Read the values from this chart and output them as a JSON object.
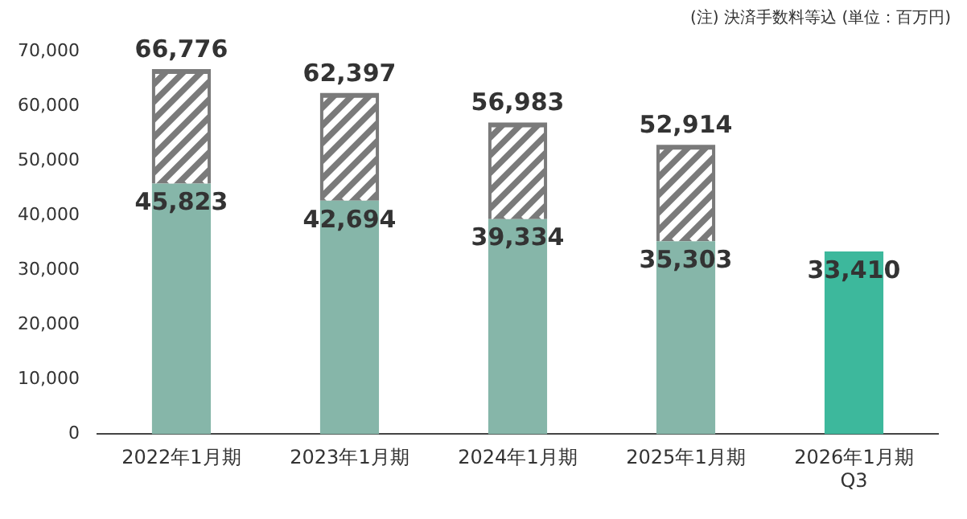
{
  "chart_data": {
    "type": "bar",
    "stacked": true,
    "categories": [
      "2022年1月期",
      "2023年1月期",
      "2024年1月期",
      "2025年1月期",
      "2026年1月期\nQ3"
    ],
    "series": [
      {
        "colors": [
          "#86b6a9",
          "#86b6a9",
          "#86b6a9",
          "#86b6a9",
          "#3db89c"
        ],
        "values": [
          45823,
          42694,
          39334,
          35303,
          33410
        ],
        "value_labels": [
          "45,823",
          "42,694",
          "39,334",
          "35,303",
          "33,410"
        ]
      },
      {
        "color": "#7a7a7a",
        "values": [
          20953,
          19703,
          17649,
          17611,
          null
        ]
      }
    ],
    "totals": [
      "66,776",
      "62,397",
      "56,983",
      "52,914",
      null
    ],
    "ylim": [
      0,
      70000
    ],
    "yticks": [
      {
        "value": 0,
        "label": "0"
      },
      {
        "value": 10000,
        "label": "10,000"
      },
      {
        "value": 20000,
        "label": "20,000"
      },
      {
        "value": 30000,
        "label": "30,000"
      },
      {
        "value": 40000,
        "label": "40,000"
      },
      {
        "value": 50000,
        "label": "50,000"
      },
      {
        "value": 60000,
        "label": "60,000"
      },
      {
        "value": 70000,
        "label": "70,000"
      }
    ],
    "grid": false,
    "legend": false,
    "annotations": [
      "(注) 決済手数料等込 (単位：百万円)"
    ]
  }
}
